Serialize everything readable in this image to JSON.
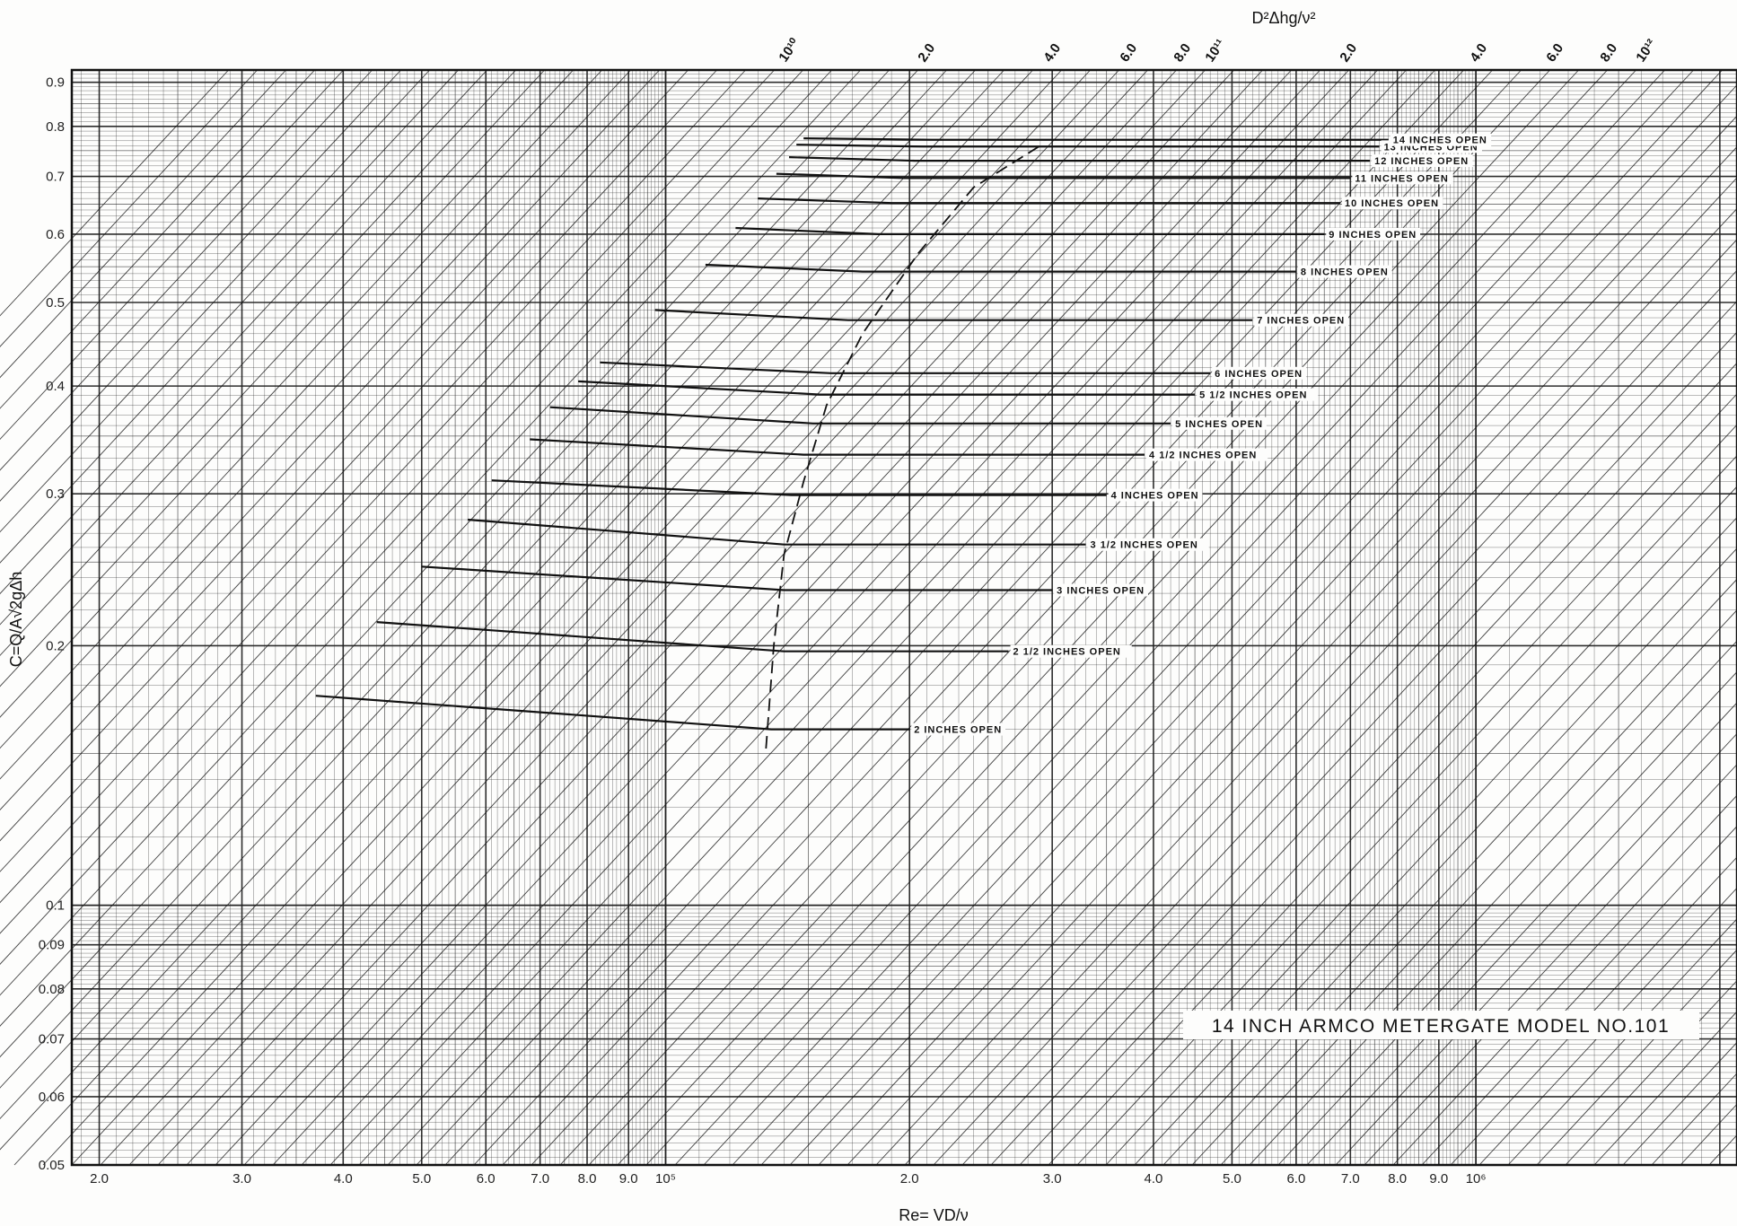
{
  "chart_data": {
    "type": "line",
    "title": "14 INCH ARMCO METERGATE MODEL NO.101",
    "xlabel": "Re= VD/ν",
    "ylabel": "C=Q/A√2gΔh",
    "top_axis_label": "D²Δhg/ν²",
    "x_scale": "log",
    "y_scale": "log",
    "xlim": [
      18500,
      2100000
    ],
    "ylim": [
      0.05,
      0.93
    ],
    "grid": true,
    "x_ticks": [
      {
        "value": 20000,
        "label": "2.0"
      },
      {
        "value": 30000,
        "label": "3.0"
      },
      {
        "value": 40000,
        "label": "4.0"
      },
      {
        "value": 50000,
        "label": "5.0"
      },
      {
        "value": 60000,
        "label": "6.0"
      },
      {
        "value": 70000,
        "label": "7.0"
      },
      {
        "value": 80000,
        "label": "8.0"
      },
      {
        "value": 90000,
        "label": "9.0"
      },
      {
        "value": 100000,
        "label": "10⁵"
      },
      {
        "value": 200000,
        "label": "2.0"
      },
      {
        "value": 300000,
        "label": "3.0"
      },
      {
        "value": 400000,
        "label": "4.0"
      },
      {
        "value": 500000,
        "label": "5.0"
      },
      {
        "value": 600000,
        "label": "6.0"
      },
      {
        "value": 700000,
        "label": "7.0"
      },
      {
        "value": 800000,
        "label": "8.0"
      },
      {
        "value": 900000,
        "label": "9.0"
      },
      {
        "value": 1000000,
        "label": "10⁶"
      }
    ],
    "y_ticks": [
      {
        "value": 0.9,
        "label": "0.9"
      },
      {
        "value": 0.8,
        "label": "0.8"
      },
      {
        "value": 0.7,
        "label": "0.7"
      },
      {
        "value": 0.6,
        "label": "0.6"
      },
      {
        "value": 0.5,
        "label": "0.5"
      },
      {
        "value": 0.4,
        "label": "0.4"
      },
      {
        "value": 0.3,
        "label": "0.3"
      },
      {
        "value": 0.2,
        "label": "0.2"
      },
      {
        "value": 0.1,
        "label": "0.1"
      },
      {
        "value": 0.09,
        "label": "0.09"
      },
      {
        "value": 0.08,
        "label": "0.08"
      },
      {
        "value": 0.07,
        "label": "0.07"
      },
      {
        "value": 0.06,
        "label": "0.06"
      },
      {
        "value": 0.05,
        "label": "0.05"
      }
    ],
    "top_ticks": [
      {
        "value": 10000000000.0,
        "label": "10¹⁰"
      },
      {
        "value": 20000000000.0,
        "label": "2.0"
      },
      {
        "value": 40000000000.0,
        "label": "4.0"
      },
      {
        "value": 60000000000.0,
        "label": "6.0"
      },
      {
        "value": 80000000000.0,
        "label": "8.0"
      },
      {
        "value": 100000000000.0,
        "label": "10¹¹"
      },
      {
        "value": 200000000000.0,
        "label": "2.0"
      },
      {
        "value": 400000000000.0,
        "label": "4.0"
      },
      {
        "value": 600000000000.0,
        "label": "6.0"
      },
      {
        "value": 800000000000.0,
        "label": "8.0"
      },
      {
        "value": 1000000000000.0,
        "label": "10¹²"
      }
    ],
    "series": [
      {
        "name": "2 INCHES OPEN",
        "x": [
          37000,
          135000,
          200000
        ],
        "y": [
          0.175,
          0.16,
          0.16
        ]
      },
      {
        "name": "2 1/2 INCHES OPEN",
        "x": [
          44000,
          140000,
          265000
        ],
        "y": [
          0.213,
          0.197,
          0.197
        ]
      },
      {
        "name": "3 INCHES OPEN",
        "x": [
          50000,
          140000,
          300000
        ],
        "y": [
          0.247,
          0.232,
          0.232
        ]
      },
      {
        "name": "3 1/2 INCHES OPEN",
        "x": [
          57000,
          140000,
          330000
        ],
        "y": [
          0.28,
          0.262,
          0.262
        ]
      },
      {
        "name": "4 INCHES OPEN",
        "x": [
          61000,
          143000,
          350000
        ],
        "y": [
          0.311,
          0.299,
          0.299
        ]
      },
      {
        "name": "4 1/2 INCHES OPEN",
        "x": [
          68000,
          148000,
          390000
        ],
        "y": [
          0.347,
          0.333,
          0.333
        ]
      },
      {
        "name": "5 INCHES OPEN",
        "x": [
          72000,
          152000,
          420000
        ],
        "y": [
          0.378,
          0.362,
          0.362
        ]
      },
      {
        "name": "5 1/2 INCHES OPEN",
        "x": [
          78000,
          155000,
          450000
        ],
        "y": [
          0.405,
          0.391,
          0.391
        ]
      },
      {
        "name": "6 INCHES OPEN",
        "x": [
          83000,
          160000,
          470000
        ],
        "y": [
          0.426,
          0.414,
          0.414
        ]
      },
      {
        "name": "7 INCHES OPEN",
        "x": [
          97000,
          168000,
          530000
        ],
        "y": [
          0.49,
          0.477,
          0.477
        ]
      },
      {
        "name": "8 INCHES OPEN",
        "x": [
          112000,
          175000,
          600000
        ],
        "y": [
          0.553,
          0.543,
          0.543
        ]
      },
      {
        "name": "9 INCHES OPEN",
        "x": [
          122000,
          183000,
          650000
        ],
        "y": [
          0.61,
          0.6,
          0.6
        ]
      },
      {
        "name": "10 INCHES OPEN",
        "x": [
          130000,
          190000,
          680000
        ],
        "y": [
          0.66,
          0.652,
          0.652
        ]
      },
      {
        "name": "11 INCHES OPEN",
        "x": [
          137000,
          197000,
          700000
        ],
        "y": [
          0.705,
          0.697,
          0.697
        ]
      },
      {
        "name": "12 INCHES OPEN",
        "x": [
          142000,
          203000,
          740000
        ],
        "y": [
          0.737,
          0.73,
          0.73
        ]
      },
      {
        "name": "13 INCHES OPEN",
        "x": [
          145000,
          208000,
          760000
        ],
        "y": [
          0.762,
          0.758,
          0.758
        ]
      },
      {
        "name": "14 INCHES OPEN",
        "x": [
          148000,
          213000,
          780000
        ],
        "y": [
          0.775,
          0.772,
          0.772
        ]
      }
    ],
    "dashed_boundary": {
      "x": [
        133000,
        136000,
        140000,
        148000,
        158000,
        175000,
        205000,
        240000,
        290000
      ],
      "y": [
        0.152,
        0.2,
        0.255,
        0.31,
        0.38,
        0.46,
        0.57,
        0.68,
        0.76
      ]
    }
  }
}
